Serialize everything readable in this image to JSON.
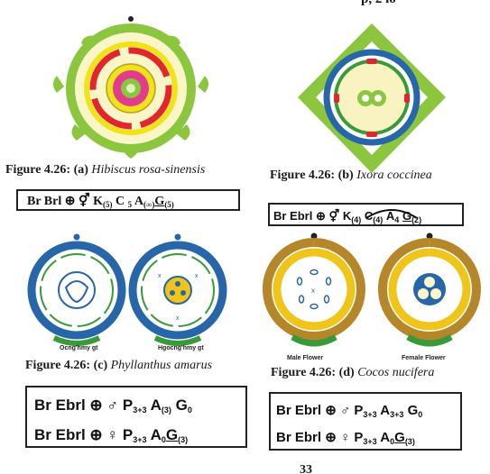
{
  "top_fragment": "p, 2 lo",
  "figures": {
    "a": {
      "num": "Figure 4.26:",
      "tag": "(a)",
      "name": "Hibiscus rosa-sinensis",
      "formula": {
        "pre": "Br Brl",
        "k": "K",
        "k_sub": "(5)",
        "c": "C",
        "c_sub": "5",
        "a": "A",
        "a_sub": "(∞)",
        "g": "G",
        "g_sub": "(5)"
      }
    },
    "b": {
      "num": "Figure 4.26:",
      "tag": "(b)",
      "name": "Ixora coccinea",
      "formula": {
        "pre": "Br Ebrl",
        "k": "K",
        "k_sub": "(4)",
        "c": "C",
        "c_sub": "(4)",
        "a": "A",
        "a_sub": "4",
        "g": "G",
        "g_sub": "(2)"
      }
    },
    "c": {
      "num": "Figure 4.26:",
      "tag": "(c)",
      "name": "Phyllanthus amarus",
      "label_left": "Ocng'hmy gt",
      "label_right": "Hgocng'hmy gt",
      "formula_male": {
        "pre": "Br Ebrl",
        "p": "P",
        "p_sub": "3+3",
        "a": "A",
        "a_sub": "(3)",
        "g": "G",
        "g_sub": "0"
      },
      "formula_female": {
        "pre": "Br Ebrl",
        "p": "P",
        "p_sub": "3+3",
        "a": "A",
        "a_sub": "0",
        "g": "G",
        "g_sub": "(3)"
      }
    },
    "d": {
      "num": "Figure 4.26:",
      "tag": "(d)",
      "name": "Cocos nucifera",
      "label_left": "Male Flower",
      "label_right": "Female Flower",
      "formula_male": {
        "pre": "Br Ebrl",
        "p": "P",
        "p_sub": "3+3",
        "a": "A",
        "a_sub": "3+3",
        "g": "G",
        "g_sub": "0"
      },
      "formula_female": {
        "pre": "Br Ebrl",
        "p": "P",
        "p_sub": "3+3",
        "a": "A",
        "a_sub": "0",
        "g": "G",
        "g_sub": "(3)"
      }
    }
  },
  "colors": {
    "green": "#8cc63f",
    "dark_green": "#3a9a3a",
    "yellow": "#f2e21a",
    "red": "#e2262d",
    "pink": "#e23c8c",
    "blue": "#2766a8",
    "brown": "#b5862a",
    "gold": "#f0c419",
    "pale": "#fbf6c8"
  },
  "footer_fragment": "33"
}
